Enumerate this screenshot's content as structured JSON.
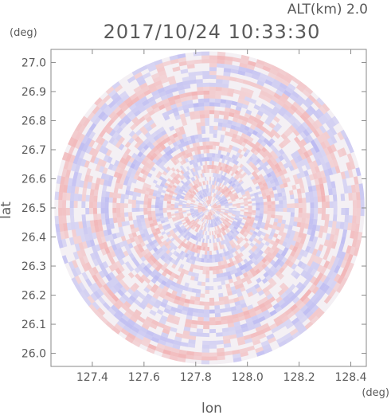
{
  "chart_data": {
    "type": "heatmap",
    "title": "2017/10/24 10:33:30",
    "subtitle": "ALT(km) 2.0",
    "xlabel": "lon",
    "ylabel": "lat",
    "x_unit": "(deg)",
    "y_unit": "(deg)",
    "xlim": [
      127.24,
      128.46
    ],
    "ylim": [
      25.955,
      27.045
    ],
    "x_ticks": [
      127.4,
      127.6,
      127.8,
      128.0,
      128.2,
      128.4
    ],
    "x_tick_labels": [
      "127.4",
      "127.6",
      "127.8",
      "128.0",
      "128.2",
      "128.4"
    ],
    "y_ticks": [
      26.0,
      26.1,
      26.2,
      26.3,
      26.4,
      26.5,
      26.6,
      26.7,
      26.8,
      26.9,
      27.0
    ],
    "y_tick_labels": [
      "26.0",
      "26.1",
      "26.2",
      "26.3",
      "26.4",
      "26.5",
      "26.6",
      "26.7",
      "26.8",
      "26.9",
      "27.0"
    ],
    "radar_center": {
      "lon": 127.853,
      "lat": 26.5
    },
    "radar_range_deg": {
      "lon": 0.6,
      "lat": 0.538
    },
    "colors": {
      "positive": "#f08080",
      "negative": "#8c8cf0",
      "frame": "#888888",
      "text": "#5a5a5a"
    },
    "grid": false,
    "legend": "none"
  }
}
